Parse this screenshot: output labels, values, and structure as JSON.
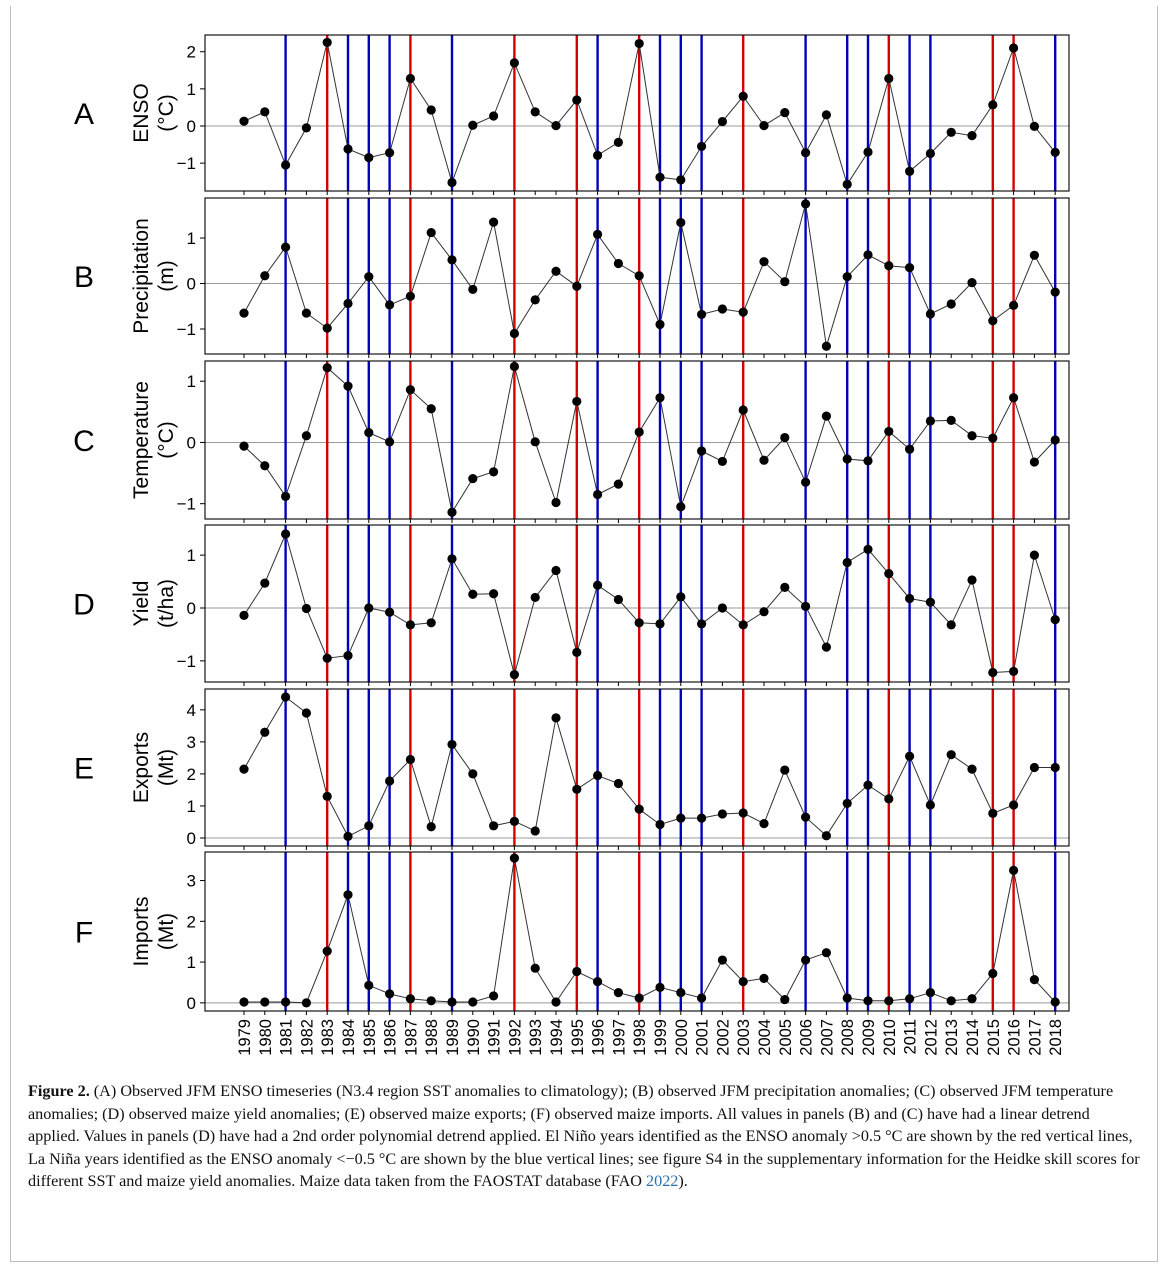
{
  "chart_data": {
    "type": "line",
    "x_label": "",
    "x": [
      1979,
      1980,
      1981,
      1982,
      1983,
      1984,
      1985,
      1986,
      1987,
      1988,
      1989,
      1990,
      1991,
      1992,
      1993,
      1994,
      1995,
      1996,
      1997,
      1998,
      1999,
      2000,
      2001,
      2002,
      2003,
      2004,
      2005,
      2006,
      2007,
      2008,
      2009,
      2010,
      2011,
      2012,
      2013,
      2014,
      2015,
      2016,
      2017,
      2018
    ],
    "el_nino_years": [
      1983,
      1987,
      1992,
      1995,
      1998,
      2003,
      2010,
      2015,
      2016
    ],
    "la_nina_years": [
      1981,
      1984,
      1985,
      1986,
      1989,
      1996,
      1999,
      2000,
      2001,
      2006,
      2008,
      2009,
      2011,
      2012,
      2018
    ],
    "colors": {
      "el_nino": "#d40000",
      "la_nina": "#0000b8",
      "marker": "#000000",
      "line": "#333333",
      "zero_line": "#999999"
    },
    "panels": [
      {
        "letter": "A",
        "ylabel": [
          "ENSO",
          "(°C)"
        ],
        "ylim": [
          -1.75,
          2.45
        ],
        "yticks": [
          -1,
          0,
          1,
          2
        ],
        "values": [
          0.13,
          0.38,
          -1.05,
          -0.05,
          2.25,
          -0.62,
          -0.85,
          -0.72,
          1.28,
          0.43,
          -1.52,
          0.02,
          0.27,
          1.7,
          0.38,
          0.01,
          0.7,
          -0.79,
          -0.44,
          2.22,
          -1.38,
          -1.45,
          -0.55,
          0.12,
          0.8,
          0.01,
          0.36,
          -0.72,
          0.3,
          -1.57,
          -0.7,
          1.28,
          -1.22,
          -0.74,
          -0.17,
          -0.26,
          0.57,
          2.1,
          -0.01,
          -0.71
        ]
      },
      {
        "letter": "B",
        "ylabel": [
          "Precipitation",
          "(m)"
        ],
        "ylim": [
          -1.55,
          1.88
        ],
        "yticks": [
          -1,
          0,
          1
        ],
        "values": [
          -0.65,
          0.17,
          0.8,
          -0.65,
          -0.98,
          -0.44,
          0.15,
          -0.47,
          -0.28,
          1.12,
          0.52,
          -0.13,
          1.35,
          -1.1,
          -0.36,
          0.27,
          -0.06,
          1.08,
          0.44,
          0.17,
          -0.9,
          1.34,
          -0.68,
          -0.56,
          -0.63,
          0.48,
          0.04,
          1.75,
          -1.38,
          0.15,
          0.63,
          0.39,
          0.35,
          -0.67,
          -0.45,
          0.02,
          -0.82,
          -0.48,
          0.62,
          -0.19
        ]
      },
      {
        "letter": "C",
        "ylabel": [
          "Temperature",
          "(°C)"
        ],
        "ylim": [
          -1.25,
          1.33
        ],
        "yticks": [
          -1,
          0,
          1
        ],
        "values": [
          -0.06,
          -0.38,
          -0.88,
          0.11,
          1.22,
          0.92,
          0.16,
          0.01,
          0.86,
          0.55,
          -1.14,
          -0.59,
          -0.48,
          1.24,
          0.01,
          -0.98,
          0.67,
          -0.85,
          -0.68,
          0.17,
          0.73,
          -1.05,
          -0.14,
          -0.31,
          0.53,
          -0.29,
          0.08,
          -0.65,
          0.43,
          -0.27,
          -0.3,
          0.18,
          -0.11,
          0.35,
          0.36,
          0.11,
          0.07,
          0.73,
          -0.32,
          0.04
        ]
      },
      {
        "letter": "D",
        "ylabel": [
          "Yield",
          "(t/ha)"
        ],
        "ylim": [
          -1.4,
          1.57
        ],
        "yticks": [
          -1,
          0,
          1
        ],
        "values": [
          -0.14,
          0.47,
          1.4,
          -0.01,
          -0.95,
          -0.9,
          0.0,
          -0.08,
          -0.32,
          -0.28,
          0.93,
          0.26,
          0.27,
          -1.26,
          0.2,
          0.71,
          -0.84,
          0.43,
          0.16,
          -0.28,
          -0.3,
          0.21,
          -0.3,
          0.0,
          -0.32,
          -0.07,
          0.39,
          0.03,
          -0.74,
          0.86,
          1.11,
          0.65,
          0.18,
          0.11,
          -0.32,
          0.53,
          -1.22,
          -1.2,
          1.0,
          -0.22
        ]
      },
      {
        "letter": "E",
        "ylabel": [
          "Exports",
          "(Mt)"
        ],
        "ylim": [
          -0.25,
          4.65
        ],
        "yticks": [
          0,
          1,
          2,
          3,
          4
        ],
        "values": [
          2.15,
          3.3,
          4.4,
          3.9,
          1.3,
          0.05,
          0.38,
          1.78,
          2.45,
          0.35,
          2.92,
          2.0,
          0.38,
          0.52,
          0.22,
          3.75,
          1.52,
          1.95,
          1.7,
          0.9,
          0.42,
          0.62,
          0.62,
          0.75,
          0.78,
          0.45,
          2.12,
          0.65,
          0.07,
          1.08,
          1.65,
          1.22,
          2.55,
          1.03,
          2.6,
          2.15,
          0.77,
          1.03,
          2.2,
          2.2
        ]
      },
      {
        "letter": "F",
        "ylabel": [
          "Imports",
          "(Mt)"
        ],
        "ylim": [
          -0.2,
          3.7
        ],
        "yticks": [
          0,
          1,
          2,
          3
        ],
        "values": [
          0.02,
          0.02,
          0.02,
          0.0,
          1.27,
          2.65,
          0.43,
          0.22,
          0.1,
          0.05,
          0.02,
          0.02,
          0.17,
          3.55,
          0.85,
          0.02,
          0.77,
          0.52,
          0.25,
          0.12,
          0.38,
          0.25,
          0.12,
          1.05,
          0.52,
          0.6,
          0.08,
          1.05,
          1.23,
          0.12,
          0.05,
          0.05,
          0.1,
          0.25,
          0.05,
          0.1,
          0.72,
          3.25,
          0.57,
          0.02
        ]
      }
    ]
  },
  "caption": {
    "label": "Figure 2.",
    "text": " (A) Observed JFM ENSO timeseries (N3.4 region SST anomalies to climatology); (B) observed JFM precipitation anomalies; (C) observed JFM temperature anomalies; (D) observed maize yield anomalies; (E) observed maize exports; (F) observed maize imports. All values in panels (B) and (C) have had a linear detrend applied. Values in panels (D) have had a 2nd order polynomial detrend applied. El Niño years identified as the ENSO anomaly >0.5 °C are shown by the red vertical lines, La Niña years identified as the ENSO anomaly <−0.5 °C are shown by the blue vertical lines; see figure S4 in the supplementary information for the Heidke skill scores for different SST and maize yield anomalies. Maize data taken from the FAOSTAT database (FAO ",
    "cite_year": "2022",
    "end": ")."
  }
}
